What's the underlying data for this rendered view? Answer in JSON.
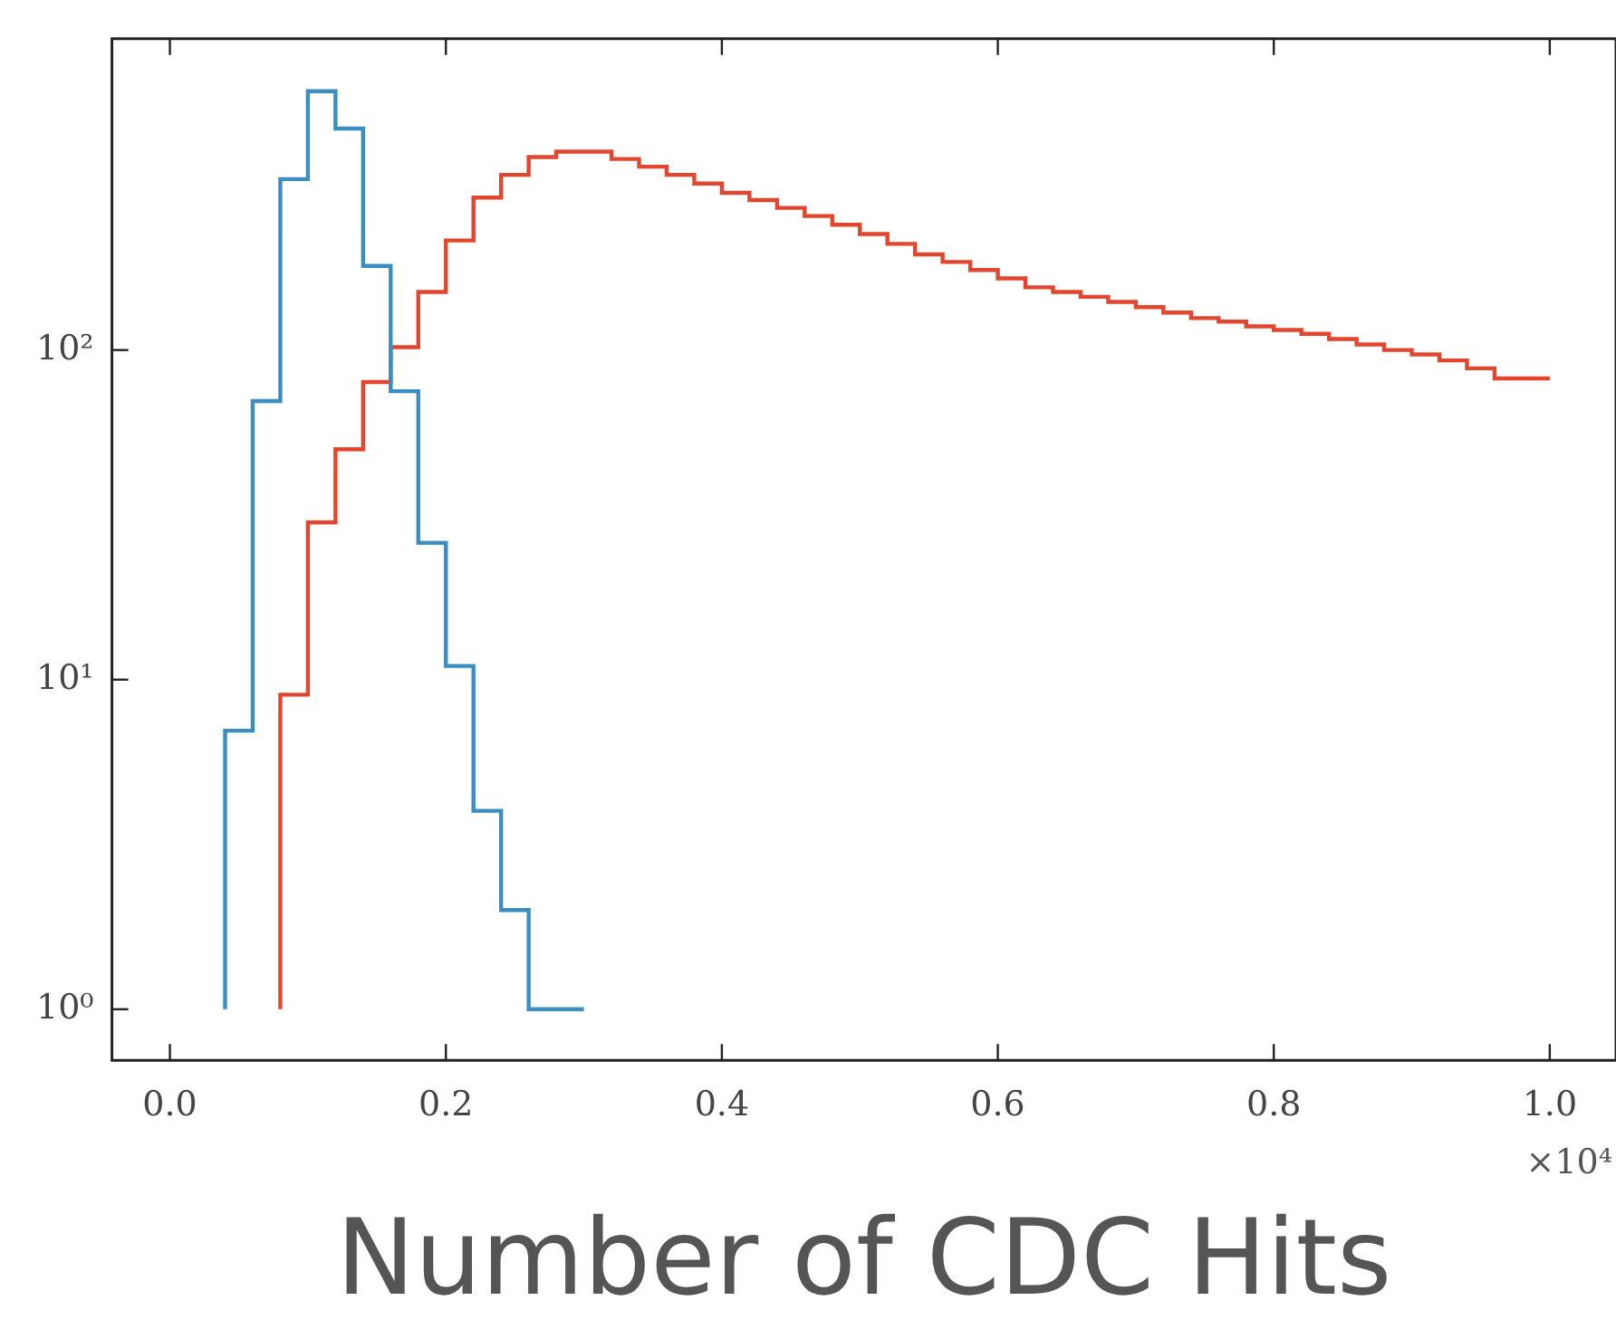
{
  "chart_data": {
    "type": "step",
    "xlabel": "Number of CDC Hits",
    "annotations": [
      "×10⁴"
    ],
    "x": [
      0.04,
      0.06,
      0.08,
      0.1,
      0.12,
      0.14,
      0.16,
      0.18,
      0.2,
      0.22,
      0.24,
      0.26,
      0.28,
      0.3,
      0.32,
      0.34,
      0.36,
      0.38,
      0.4,
      0.42,
      0.44,
      0.46,
      0.48,
      0.5,
      0.52,
      0.54,
      0.56,
      0.58,
      0.6,
      0.62,
      0.64,
      0.66,
      0.68,
      0.7,
      0.72,
      0.74,
      0.76,
      0.78,
      0.8,
      0.82,
      0.84,
      0.86,
      0.88,
      0.9,
      0.92,
      0.94,
      0.96,
      0.98,
      1.0
    ],
    "series": [
      {
        "color": "#3a8ec2",
        "values": [
          1,
          7,
          70,
          330,
          610,
          470,
          180,
          75,
          26,
          11,
          4,
          2,
          1,
          1,
          null,
          null,
          null,
          null,
          null,
          null,
          null,
          null,
          null,
          null,
          null,
          null,
          null,
          null,
          null,
          null,
          null,
          null,
          null,
          null,
          null,
          null,
          null,
          null,
          null,
          null,
          null,
          null,
          null,
          null,
          null,
          null,
          null,
          null,
          null
        ]
      },
      {
        "color": "#e2462e",
        "values": [
          null,
          null,
          1,
          9,
          30,
          50,
          80,
          102,
          150,
          215,
          290,
          340,
          385,
          400,
          400,
          380,
          360,
          340,
          320,
          300,
          285,
          270,
          255,
          240,
          225,
          210,
          195,
          185,
          175,
          165,
          155,
          150,
          145,
          140,
          135,
          130,
          125,
          122,
          118,
          115,
          112,
          108,
          104,
          100,
          97,
          93,
          88,
          82,
          82
        ]
      }
    ],
    "log": "y",
    "grid": false,
    "legend": false,
    "xlim": [
      -0.042,
      1.048
    ],
    "xticks": [
      {
        "value": 0,
        "label": "0.0"
      },
      {
        "value": 0.2,
        "label": "0.2"
      },
      {
        "value": 0.4,
        "label": "0.4"
      },
      {
        "value": 0.6,
        "label": "0.6"
      },
      {
        "value": 0.8,
        "label": "0.8"
      },
      {
        "value": 1.0,
        "label": "1.0"
      }
    ],
    "ylim": [
      0.73,
      880
    ],
    "yticks": [
      {
        "value": 1,
        "label": "10⁰"
      },
      {
        "value": 10,
        "label": "10¹"
      },
      {
        "value": 100,
        "label": "10²"
      }
    ]
  }
}
